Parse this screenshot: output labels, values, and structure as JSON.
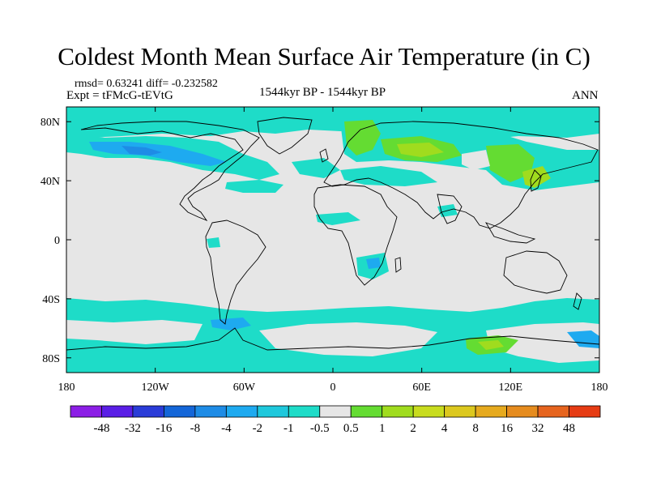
{
  "title": "Coldest Month Mean Surface Air Temperature (in C)",
  "stats": "rmsd= 0.63241  diff= -0.232582",
  "expt": "Expt = tFMcG-tEVtG",
  "period": "1544kyr BP - 1544kyr BP",
  "season": "ANN",
  "map": {
    "lon_range": [
      -180,
      180
    ],
    "lat_range": [
      -90,
      90
    ],
    "x_ticks": [
      {
        "lon": -180,
        "label": "180"
      },
      {
        "lon": -120,
        "label": "120W"
      },
      {
        "lon": -60,
        "label": "60W"
      },
      {
        "lon": 0,
        "label": "0"
      },
      {
        "lon": 60,
        "label": "60E"
      },
      {
        "lon": 120,
        "label": "120E"
      },
      {
        "lon": 180,
        "label": "180"
      }
    ],
    "y_ticks": [
      {
        "lat": 80,
        "label": "80N"
      },
      {
        "lat": 40,
        "label": "40N"
      },
      {
        "lat": 0,
        "label": "0"
      },
      {
        "lat": -40,
        "label": "40S"
      },
      {
        "lat": -80,
        "label": "80S"
      }
    ],
    "background_color": "#e6e6e6",
    "coast_color": "#000000"
  },
  "legend": {
    "colors": [
      "#8c1ee6",
      "#5a1ee6",
      "#2a3cd8",
      "#1466d8",
      "#1e8ce6",
      "#1eaaf0",
      "#1ec8dc",
      "#1edcc8",
      "#e6e6e6",
      "#64dc32",
      "#a0dc1e",
      "#c8dc1e",
      "#dcc81e",
      "#e6aa1e",
      "#e68c1e",
      "#e6641e",
      "#e63c14"
    ],
    "labels": [
      "-48",
      "-32",
      "-16",
      "-8",
      "-4",
      "-2",
      "-1",
      "-0.5",
      "0.5",
      "1",
      "2",
      "4",
      "8",
      "16",
      "32",
      "48"
    ]
  },
  "colors": {
    "neg_light": "#1edcc8",
    "neg_mid": "#1eaaf0",
    "neg_dark": "#1e8ce6",
    "pos_light": "#64dc32",
    "pos_mid": "#a0dc1e"
  }
}
